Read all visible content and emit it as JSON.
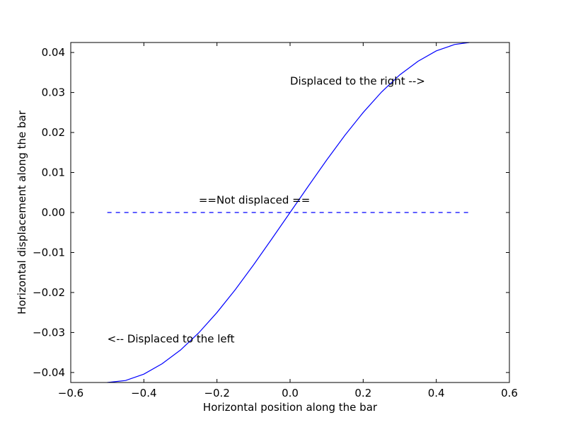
{
  "chart_data": {
    "type": "line",
    "title": "",
    "xlabel": "Horizontal position along the bar",
    "ylabel": "Horizontal displacement along the bar",
    "xlim": [
      -0.6,
      0.6
    ],
    "ylim": [
      -0.0425,
      0.0425
    ],
    "xticks": [
      -0.6,
      -0.4,
      -0.2,
      0.0,
      0.2,
      0.4,
      0.6
    ],
    "xtick_labels": [
      "−0.6",
      "−0.4",
      "−0.2",
      "0.0",
      "0.2",
      "0.4",
      "0.6"
    ],
    "yticks": [
      -0.04,
      -0.03,
      -0.02,
      -0.01,
      0.0,
      0.01,
      0.02,
      0.03,
      0.04
    ],
    "ytick_labels": [
      "−0.04",
      "−0.03",
      "−0.02",
      "−0.01",
      "0.00",
      "0.01",
      "0.02",
      "0.03",
      "0.04"
    ],
    "grid": false,
    "series": [
      {
        "style": "solid",
        "color": "#0000ff",
        "x": [
          -0.5,
          -0.45,
          -0.4,
          -0.35,
          -0.3,
          -0.25,
          -0.2,
          -0.15,
          -0.1,
          -0.05,
          0.0,
          0.05,
          0.1,
          0.15,
          0.2,
          0.25,
          0.3,
          0.35,
          0.4,
          0.45,
          0.49
        ],
        "y": [
          -0.0425,
          -0.042,
          -0.0404,
          -0.0378,
          -0.0344,
          -0.0301,
          -0.025,
          -0.0193,
          -0.0131,
          -0.0066,
          0.0,
          0.0066,
          0.0131,
          0.0193,
          0.025,
          0.0301,
          0.0344,
          0.0378,
          0.0404,
          0.042,
          0.0425
        ]
      },
      {
        "style": "dashed",
        "color": "#0000ff",
        "x": [
          -0.5,
          0.49
        ],
        "y": [
          0.0,
          0.0
        ]
      }
    ],
    "annotations": [
      {
        "text": "Displaced to the right -->",
        "x": 0.0,
        "y": 0.032
      },
      {
        "text": "==Not displaced ==",
        "x": -0.25,
        "y": 0.0022
      },
      {
        "text": "<-- Displaced to the left",
        "x": -0.5,
        "y": -0.0325
      }
    ]
  }
}
